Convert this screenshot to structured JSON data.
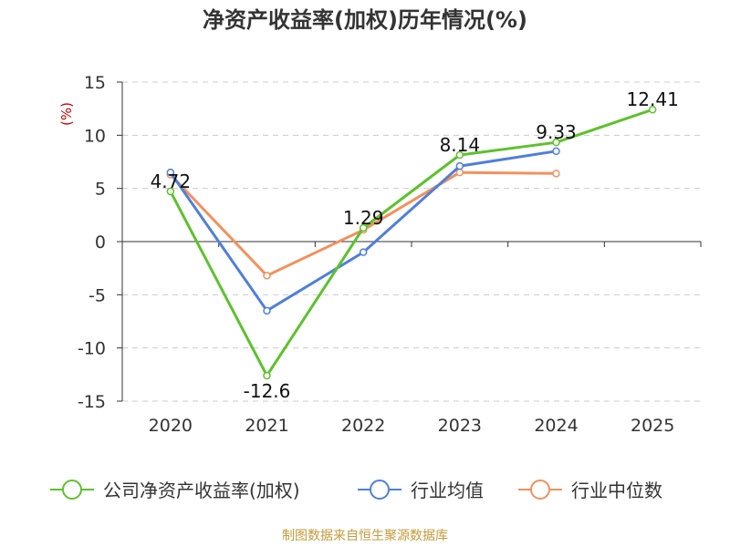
{
  "chart_data": {
    "type": "line",
    "title": "净资产收益率(加权)历年情况(%)",
    "ylabel": "(%)",
    "xlabel": "",
    "ylim": [
      -15,
      15
    ],
    "yticks": [
      15,
      10,
      5,
      0,
      -5,
      -10,
      -15
    ],
    "categories": [
      "2020",
      "2021",
      "2022",
      "2023",
      "2024",
      "2025"
    ],
    "series": [
      {
        "name": "公司净资产收益率(加权)",
        "color": "#5cc22c",
        "values": [
          4.72,
          -12.6,
          1.29,
          8.14,
          9.33,
          12.41
        ],
        "labels": [
          "4.72",
          "-12.6",
          "1.29",
          "8.14",
          "9.33",
          "12.41"
        ]
      },
      {
        "name": "行业均值",
        "color": "#4f7fdc",
        "values": [
          6.5,
          -6.5,
          -1.0,
          7.1,
          8.5,
          null
        ]
      },
      {
        "name": "行业中位数",
        "color": "#f4905c",
        "values": [
          6.3,
          -3.2,
          1.1,
          6.5,
          6.4,
          null
        ]
      }
    ],
    "grid": true,
    "legend": "bottom"
  },
  "source_note": "制图数据来自恒生聚源数据库"
}
